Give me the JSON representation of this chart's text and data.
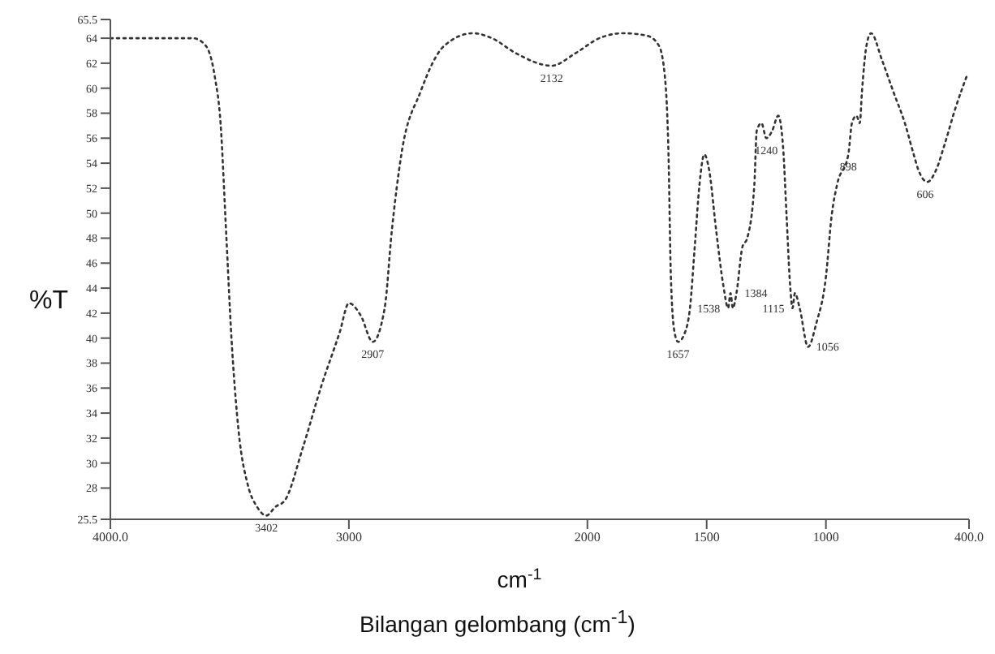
{
  "chart_data": {
    "type": "line",
    "xlabel": "cm$^{-1}$",
    "ylabel": "%T",
    "annotations": [
      {
        "text": "3402",
        "x": 3346,
        "y": 25.8
      },
      {
        "text": "2907",
        "x": 2900,
        "y": 39.7
      },
      {
        "text": "2132",
        "x": 2150,
        "y": 61.8
      },
      {
        "text": "1657",
        "x": 1620,
        "y": 39.7
      },
      {
        "text": "1538",
        "x": 1410,
        "y": 42.4
      },
      {
        "text": "1384",
        "x": 1375,
        "y": 43.6
      },
      {
        "text": "1240",
        "x": 1250,
        "y": 56
      },
      {
        "text": "1115",
        "x": 1140,
        "y": 42.4
      },
      {
        "text": "1056",
        "x": 1075,
        "y": 39.3
      },
      {
        "text": "898",
        "x": 906,
        "y": 54.7
      },
      {
        "text": "606",
        "x": 584,
        "y": 52.5
      },
      "Bilangan gelombang (cm$^{-1}$)"
    ],
    "x": [
      4000,
      3654,
      3600,
      3562,
      3538,
      3515,
      3492,
      3462,
      3423,
      3385,
      3346,
      3308,
      3269,
      3192,
      3115,
      3038,
      3000,
      2950,
      2900,
      2850,
      2820,
      2780,
      2700,
      2600,
      2480,
      2400,
      2300,
      2150,
      2050,
      1950,
      1850,
      1750,
      1700,
      1675,
      1660,
      1650,
      1635,
      1620,
      1590,
      1570,
      1550,
      1530,
      1510,
      1490,
      1460,
      1430,
      1410,
      1400,
      1390,
      1375,
      1350,
      1330,
      1300,
      1290,
      1270,
      1250,
      1225,
      1200,
      1180,
      1165,
      1150,
      1140,
      1130,
      1110,
      1075,
      1040,
      1000,
      976,
      953,
      906,
      891,
      872,
      858,
      849,
      830,
      811,
      764,
      717,
      669,
      632,
      613,
      575,
      537,
      504,
      457,
      405
    ],
    "series": [
      {
        "color": "#333333",
        "values": [
          64,
          64,
          63.4,
          60.9,
          57.2,
          48.6,
          39.9,
          32.5,
          28.2,
          26.5,
          25.8,
          26.5,
          27,
          31.3,
          36.2,
          40.5,
          42.8,
          41.8,
          39.7,
          42.4,
          48.6,
          54.7,
          59.7,
          63.4,
          64.4,
          64,
          62.8,
          61.8,
          62.8,
          64,
          64.4,
          64.2,
          63.4,
          60.9,
          54.7,
          44.9,
          40.5,
          39.7,
          40.5,
          42.4,
          47.3,
          52.3,
          54.7,
          53.5,
          48.6,
          44.2,
          42.4,
          43.6,
          42.4,
          43.6,
          47.3,
          48,
          52.3,
          56.6,
          57.2,
          56,
          56.6,
          57.8,
          55.4,
          49.8,
          44.2,
          42.4,
          43.6,
          42.4,
          39.3,
          41.2,
          44.9,
          49.8,
          52.3,
          54.7,
          57.2,
          57.8,
          57.2,
          59.7,
          63.4,
          64.4,
          62.2,
          59.7,
          57.2,
          54.7,
          53.5,
          52.5,
          53.5,
          55.4,
          58.4,
          61.2
        ]
      }
    ],
    "xlim": [
      4000,
      400
    ],
    "xticks": [
      {
        "value": 4000,
        "label": "4000.0"
      },
      3000,
      2000,
      1500,
      1000,
      {
        "value": 400,
        "label": "400.0"
      }
    ],
    "ylim": [
      25.5,
      65.5
    ],
    "yticks": [
      25.5,
      28,
      30,
      32,
      34,
      36,
      38,
      40,
      42,
      44,
      46,
      48,
      50,
      52,
      54,
      56,
      58,
      60,
      62,
      64,
      65.5
    ],
    "line_style": "dotted",
    "marker": "none",
    "grid": false,
    "legend": false
  }
}
